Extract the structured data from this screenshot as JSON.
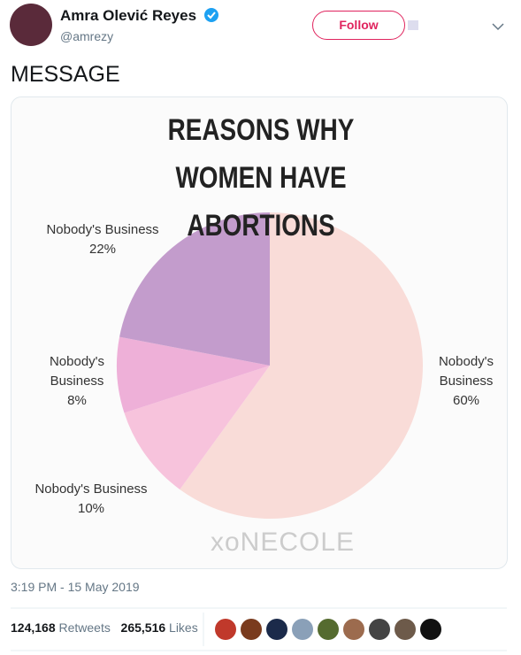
{
  "header": {
    "name": "Amra Olević Reyes",
    "handle": "@amrezy",
    "follow_button": "Follow"
  },
  "tweet_text": "MESSAGE",
  "chart_data": {
    "type": "pie",
    "title": "REASONS WHY WOMEN HAVE ABORTIONS",
    "categories": [
      "Nobody's Business",
      "Nobody's Business",
      "Nobody's Business",
      "Nobody's Business"
    ],
    "values": [
      60,
      10,
      8,
      22
    ],
    "value_labels": [
      "60%",
      "10%",
      "8%",
      "22%"
    ],
    "colors": [
      "#f9dcd8",
      "#f7c3dc",
      "#eeb0d8",
      "#c39ccc"
    ],
    "watermark": "xoNECOLE"
  },
  "timestamp": "3:19 PM - 15 May 2019",
  "stats": {
    "retweets": "124,168",
    "retweets_label": "Retweets",
    "likes": "265,516",
    "likes_label": "Likes"
  }
}
